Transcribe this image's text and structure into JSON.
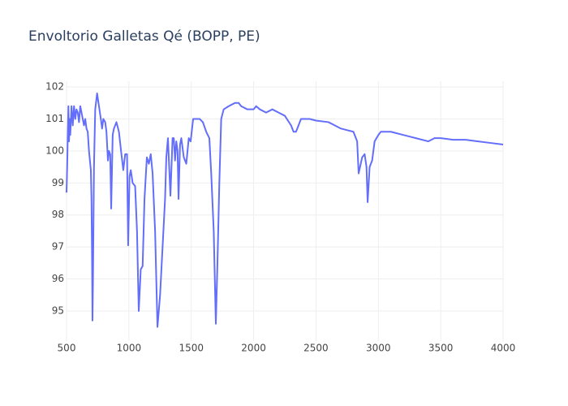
{
  "chart_data": {
    "type": "line",
    "title": "Envoltorio Galletas Qé (BOPP, PE)",
    "x": [
      500,
      505,
      510,
      515,
      520,
      525,
      530,
      540,
      550,
      560,
      570,
      580,
      590,
      600,
      610,
      620,
      630,
      640,
      650,
      660,
      670,
      680,
      695,
      700,
      705,
      708,
      712,
      720,
      730,
      745,
      760,
      775,
      785,
      795,
      810,
      820,
      832,
      840,
      850,
      858,
      870,
      880,
      900,
      920,
      940,
      955,
      970,
      985,
      994,
      1005,
      1015,
      1030,
      1050,
      1065,
      1079,
      1095,
      1110,
      1125,
      1144,
      1160,
      1175,
      1190,
      1210,
      1229,
      1250,
      1270,
      1290,
      1300,
      1313,
      1333,
      1350,
      1360,
      1370,
      1380,
      1390,
      1398,
      1410,
      1420,
      1440,
      1460,
      1480,
      1495,
      1515,
      1540,
      1567,
      1593,
      1620,
      1645,
      1660,
      1680,
      1697,
      1710,
      1725,
      1740,
      1760,
      1800,
      1850,
      1880,
      1900,
      1950,
      2000,
      2020,
      2050,
      2100,
      2150,
      2200,
      2250,
      2300,
      2320,
      2340,
      2360,
      2380,
      2400,
      2450,
      2500,
      2600,
      2650,
      2700,
      2750,
      2800,
      2830,
      2842,
      2870,
      2890,
      2905,
      2914,
      2930,
      2950,
      2970,
      3000,
      3020,
      3100,
      3200,
      3300,
      3400,
      3450,
      3500,
      3600,
      3700,
      3800,
      3900,
      4000
    ],
    "series": [
      {
        "name": "Envoltorio Galletas Qé (BOPP, PE)",
        "color": "#636efa",
        "values": [
          98.7,
          99.5,
          100.5,
          101.4,
          100.3,
          101.0,
          100.5,
          101.4,
          100.8,
          101.4,
          101.0,
          101.3,
          101.2,
          100.9,
          101.4,
          101.2,
          101.0,
          100.8,
          101.0,
          100.7,
          100.6,
          100.0,
          99.4,
          98.5,
          96.5,
          94.7,
          96.0,
          99.5,
          101.3,
          101.8,
          101.4,
          101.0,
          100.7,
          101.0,
          100.9,
          100.6,
          99.7,
          100.0,
          99.9,
          98.2,
          100.5,
          100.7,
          100.9,
          100.6,
          99.9,
          99.4,
          99.9,
          99.9,
          97.05,
          99.2,
          99.4,
          99.0,
          98.9,
          97.5,
          95.0,
          96.3,
          96.4,
          98.5,
          99.8,
          99.6,
          99.9,
          99.3,
          97.5,
          94.5,
          95.5,
          97.0,
          98.5,
          99.8,
          100.4,
          98.6,
          100.4,
          100.4,
          99.7,
          100.3,
          100.0,
          98.5,
          100.2,
          100.4,
          99.8,
          99.6,
          100.4,
          100.3,
          101.0,
          101.0,
          101.0,
          100.9,
          100.6,
          100.4,
          99.3,
          97.5,
          94.6,
          96.5,
          99.0,
          101.0,
          101.3,
          101.4,
          101.5,
          101.5,
          101.4,
          101.3,
          101.3,
          101.4,
          101.3,
          101.2,
          101.3,
          101.2,
          101.1,
          100.8,
          100.6,
          100.6,
          100.8,
          101.0,
          101.0,
          101.0,
          100.95,
          100.9,
          100.8,
          100.7,
          100.65,
          100.6,
          100.3,
          99.3,
          99.8,
          99.9,
          99.5,
          98.4,
          99.5,
          99.7,
          100.3,
          100.5,
          100.6,
          100.6,
          100.5,
          100.4,
          100.3,
          100.4,
          100.4,
          100.35,
          100.35,
          100.3,
          100.25,
          100.2
        ]
      }
    ],
    "xlim": [
      500,
      4000
    ],
    "xticks": [
      500,
      1000,
      1500,
      2000,
      2500,
      3000,
      3500,
      4000
    ],
    "ylim": [
      94.06,
      102.18
    ],
    "yticks": [
      95,
      96,
      97,
      98,
      99,
      100,
      101,
      102
    ],
    "grid": true
  }
}
